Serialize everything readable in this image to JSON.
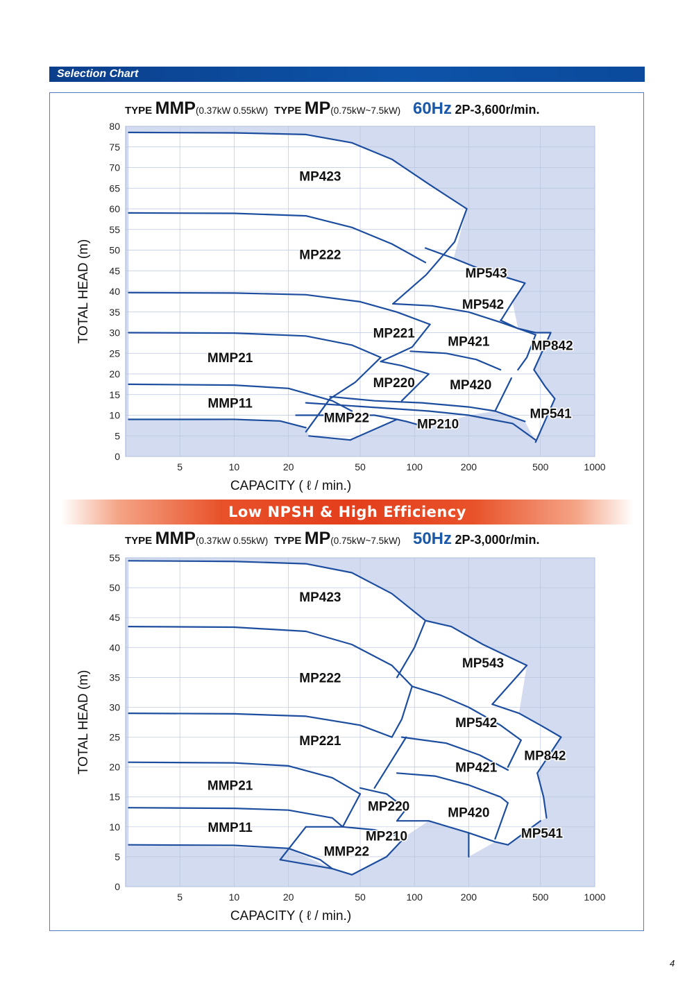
{
  "header": {
    "section_title": "Selection Chart"
  },
  "banner": {
    "text": "Low NPSH & High Efficiency"
  },
  "page_number": "4",
  "colors": {
    "plot_bg": "#d2dbef",
    "curve": "#1c4d9e",
    "header_bar": "#0d4fa3",
    "banner": "#e33e1c",
    "hz_text": "#1b58a8"
  },
  "chart_data": [
    {
      "type": "area",
      "heading": {
        "type_word_1": "TYPE",
        "model_1": "MMP",
        "range_1": "(0.37kW  0.55kW)",
        "type_word_2": "TYPE",
        "model_2": "MP",
        "range_2": "(0.75kW~7.5kW)",
        "frequency": "60Hz",
        "speed": "2P-3,600r/min."
      },
      "xlabel": "CAPACITY ( ℓ / min.)",
      "ylabel": "TOTAL HEAD (m)",
      "x_scale": "log",
      "xlim": [
        2.5,
        1000
      ],
      "ylim": [
        0,
        80
      ],
      "x_ticks": [
        5,
        10,
        20,
        50,
        100,
        200,
        500,
        1000
      ],
      "y_ticks": [
        0,
        5,
        10,
        15,
        20,
        25,
        30,
        35,
        40,
        45,
        50,
        55,
        60,
        65,
        70,
        75,
        80
      ],
      "grid": true,
      "curves": [
        [
          [
            2.6,
            78.5
          ],
          [
            10,
            78.4
          ],
          [
            25,
            78
          ],
          [
            45,
            76
          ],
          [
            75,
            72
          ],
          [
            120,
            66
          ],
          [
            195,
            60
          ]
        ],
        [
          [
            2.6,
            59
          ],
          [
            10,
            58.9
          ],
          [
            25,
            58.3
          ],
          [
            45,
            55.5
          ],
          [
            75,
            51.5
          ],
          [
            115,
            47
          ]
        ],
        [
          [
            115,
            50.5
          ],
          [
            165,
            48
          ],
          [
            245,
            45
          ],
          [
            410,
            42
          ]
        ],
        [
          [
            195,
            60
          ],
          [
            167,
            52
          ],
          [
            116,
            44
          ],
          [
            76,
            37
          ]
        ],
        [
          [
            410,
            42
          ],
          [
            350,
            37.5
          ],
          [
            302,
            33
          ]
        ],
        [
          [
            2.6,
            39.7
          ],
          [
            10,
            39.6
          ],
          [
            25,
            39.2
          ],
          [
            50,
            37.5
          ],
          [
            80,
            35
          ],
          [
            122,
            32
          ]
        ],
        [
          [
            76,
            37
          ],
          [
            125,
            36.5
          ],
          [
            200,
            35
          ],
          [
            300,
            32.5
          ],
          [
            470,
            29.5
          ]
        ],
        [
          [
            470,
            29.5
          ],
          [
            420,
            24
          ],
          [
            375,
            21
          ]
        ],
        [
          [
            2.6,
            30
          ],
          [
            10,
            29.9
          ],
          [
            25,
            29.2
          ],
          [
            45,
            27
          ],
          [
            65,
            24
          ]
        ],
        [
          [
            122,
            32
          ],
          [
            97,
            26.5
          ],
          [
            65,
            23
          ]
        ],
        [
          [
            95,
            25.5
          ],
          [
            150,
            25
          ],
          [
            220,
            23.5
          ],
          [
            300,
            21
          ]
        ],
        [
          [
            345,
            19
          ],
          [
            280,
            11
          ]
        ],
        [
          [
            2.6,
            17.5
          ],
          [
            10,
            17.3
          ],
          [
            20,
            16.5
          ],
          [
            35,
            13.5
          ],
          [
            45,
            11
          ]
        ],
        [
          [
            65,
            24
          ],
          [
            47,
            18
          ],
          [
            34,
            14
          ]
        ],
        [
          [
            65,
            23
          ],
          [
            85,
            22
          ],
          [
            120,
            20
          ]
        ],
        [
          [
            120,
            20
          ],
          [
            85,
            13.5
          ]
        ],
        [
          [
            34,
            14.5
          ],
          [
            60,
            13.5
          ],
          [
            110,
            13
          ],
          [
            200,
            12
          ],
          [
            280,
            11
          ]
        ],
        [
          [
            280,
            11
          ],
          [
            410,
            8.5
          ]
        ],
        [
          [
            22,
            10
          ],
          [
            60,
            10
          ],
          [
            80,
            9
          ],
          [
            90,
            8.5
          ]
        ],
        [
          [
            90,
            8.5
          ],
          [
            120,
            7
          ]
        ],
        [
          [
            25,
            13
          ],
          [
            120,
            11
          ],
          [
            200,
            10
          ],
          [
            350,
            8
          ],
          [
            470,
            4
          ]
        ],
        [
          [
            2.6,
            9
          ],
          [
            10,
            9
          ],
          [
            18,
            8.6
          ],
          [
            25,
            7
          ]
        ],
        [
          [
            34,
            14
          ],
          [
            25,
            6
          ]
        ],
        [
          [
            26,
            5
          ],
          [
            44,
            4
          ]
        ],
        [
          [
            44,
            4
          ],
          [
            80,
            9
          ]
        ],
        [
          [
            300,
            33
          ],
          [
            375,
            31
          ],
          [
            470,
            30
          ],
          [
            570,
            30
          ]
        ],
        [
          [
            570,
            30
          ],
          [
            460,
            21
          ]
        ],
        [
          [
            460,
            21
          ],
          [
            530,
            17
          ],
          [
            600,
            14
          ]
        ],
        [
          [
            470,
            3.5
          ],
          [
            600,
            14
          ]
        ]
      ],
      "labels": [
        {
          "text": "MP423",
          "x": 30,
          "y": 68
        },
        {
          "text": "MP222",
          "x": 30,
          "y": 49
        },
        {
          "text": "MP543",
          "x": 250,
          "y": 44.5
        },
        {
          "text": "MP542",
          "x": 240,
          "y": 37
        },
        {
          "text": "MP221",
          "x": 77,
          "y": 30
        },
        {
          "text": "MP421",
          "x": 200,
          "y": 28
        },
        {
          "text": "MP842",
          "x": 580,
          "y": 27
        },
        {
          "text": "MMP21",
          "x": 9.5,
          "y": 24
        },
        {
          "text": "MP220",
          "x": 77,
          "y": 18
        },
        {
          "text": "MP420",
          "x": 205,
          "y": 17.5
        },
        {
          "text": "MMP11",
          "x": 9.5,
          "y": 13
        },
        {
          "text": "MP541",
          "x": 570,
          "y": 10.5
        },
        {
          "text": "MMP22",
          "x": 42,
          "y": 9.5
        },
        {
          "text": "MP210",
          "x": 135,
          "y": 8
        }
      ]
    },
    {
      "type": "area",
      "heading": {
        "type_word_1": "TYPE",
        "model_1": "MMP",
        "range_1": "(0.37kW  0.55kW)",
        "type_word_2": "TYPE",
        "model_2": "MP",
        "range_2": "(0.75kW~7.5kW)",
        "frequency": "50Hz",
        "speed": "2P-3,000r/min."
      },
      "xlabel": "CAPACITY ( ℓ / min.)",
      "ylabel": "TOTAL HEAD (m)",
      "x_scale": "log",
      "xlim": [
        2.5,
        1000
      ],
      "ylim": [
        0,
        55
      ],
      "x_ticks": [
        5,
        10,
        20,
        50,
        100,
        200,
        500,
        1000
      ],
      "y_ticks": [
        0,
        5,
        10,
        15,
        20,
        25,
        30,
        35,
        40,
        45,
        50,
        55
      ],
      "grid": true,
      "curves": [
        [
          [
            2.6,
            54.5
          ],
          [
            10,
            54.4
          ],
          [
            25,
            54
          ],
          [
            45,
            52.5
          ],
          [
            75,
            49
          ],
          [
            115,
            44.5
          ]
        ],
        [
          [
            115,
            44.5
          ],
          [
            160,
            43.5
          ],
          [
            240,
            40.5
          ],
          [
            420,
            37
          ]
        ],
        [
          [
            420,
            37
          ],
          [
            270,
            30.5
          ]
        ],
        [
          [
            2.6,
            43.5
          ],
          [
            10,
            43.4
          ],
          [
            25,
            42.7
          ],
          [
            45,
            40.5
          ],
          [
            75,
            37
          ],
          [
            97,
            33.5
          ]
        ],
        [
          [
            115,
            44.5
          ],
          [
            100,
            40
          ],
          [
            80,
            35
          ]
        ],
        [
          [
            97,
            33.5
          ],
          [
            140,
            32
          ],
          [
            200,
            30
          ],
          [
            300,
            27
          ],
          [
            390,
            24.5
          ]
        ],
        [
          [
            390,
            24.5
          ],
          [
            330,
            20
          ]
        ],
        [
          [
            2.6,
            29
          ],
          [
            10,
            28.9
          ],
          [
            25,
            28.5
          ],
          [
            50,
            27
          ],
          [
            75,
            25
          ]
        ],
        [
          [
            97,
            33.5
          ],
          [
            85,
            28
          ],
          [
            75,
            25
          ]
        ],
        [
          [
            85,
            25
          ],
          [
            150,
            24
          ],
          [
            230,
            22
          ],
          [
            330,
            19.5
          ]
        ],
        [
          [
            270,
            30.5
          ],
          [
            380,
            29
          ],
          [
            500,
            27
          ],
          [
            650,
            25
          ]
        ],
        [
          [
            650,
            25
          ],
          [
            480,
            19
          ]
        ],
        [
          [
            480,
            19
          ],
          [
            520,
            15
          ],
          [
            540,
            11.5
          ]
        ],
        [
          [
            2.6,
            20.8
          ],
          [
            10,
            20.7
          ],
          [
            20,
            20.2
          ],
          [
            35,
            18.2
          ],
          [
            50,
            15.5
          ]
        ],
        [
          [
            90,
            25
          ],
          [
            60,
            16.5
          ]
        ],
        [
          [
            80,
            19
          ],
          [
            130,
            18.5
          ],
          [
            200,
            17
          ],
          [
            300,
            15
          ],
          [
            330,
            14
          ]
        ],
        [
          [
            330,
            14
          ],
          [
            280,
            8
          ]
        ],
        [
          [
            2.6,
            13.2
          ],
          [
            10,
            13.1
          ],
          [
            20,
            12.8
          ],
          [
            35,
            11.5
          ],
          [
            40,
            10
          ]
        ],
        [
          [
            50,
            16.5
          ],
          [
            70,
            15.5
          ],
          [
            90,
            13
          ],
          [
            80,
            11
          ]
        ],
        [
          [
            40,
            10
          ],
          [
            60,
            9.5
          ],
          [
            80,
            8.5
          ]
        ],
        [
          [
            80,
            11
          ],
          [
            120,
            11
          ],
          [
            200,
            9
          ],
          [
            280,
            7.5
          ],
          [
            330,
            7
          ]
        ],
        [
          [
            50,
            15.5
          ],
          [
            40,
            10
          ],
          [
            25,
            10
          ]
        ],
        [
          [
            2.6,
            7
          ],
          [
            10,
            6.9
          ],
          [
            20,
            6.4
          ],
          [
            30,
            4.5
          ],
          [
            35,
            3
          ]
        ],
        [
          [
            25,
            10
          ],
          [
            18,
            4.5
          ]
        ],
        [
          [
            18,
            4.5
          ],
          [
            35,
            3
          ],
          [
            45,
            2
          ]
        ],
        [
          [
            45,
            2
          ],
          [
            70,
            5
          ]
        ],
        [
          [
            70,
            5
          ],
          [
            90,
            8.5
          ]
        ],
        [
          [
            200,
            9
          ],
          [
            200,
            5
          ]
        ],
        [
          [
            330,
            7
          ],
          [
            500,
            11
          ]
        ]
      ],
      "labels": [
        {
          "text": "MP423",
          "x": 30,
          "y": 48.5
        },
        {
          "text": "MP222",
          "x": 30,
          "y": 35
        },
        {
          "text": "MP543",
          "x": 240,
          "y": 37.5
        },
        {
          "text": "MP542",
          "x": 220,
          "y": 27.5
        },
        {
          "text": "MP221",
          "x": 30,
          "y": 24.5
        },
        {
          "text": "MP421",
          "x": 220,
          "y": 20
        },
        {
          "text": "MP842",
          "x": 530,
          "y": 22
        },
        {
          "text": "MMP21",
          "x": 9.5,
          "y": 17
        },
        {
          "text": "MP220",
          "x": 72,
          "y": 13.5
        },
        {
          "text": "MP420",
          "x": 200,
          "y": 12.5
        },
        {
          "text": "MMP11",
          "x": 9.5,
          "y": 10
        },
        {
          "text": "MP541",
          "x": 510,
          "y": 9
        },
        {
          "text": "MP210",
          "x": 70,
          "y": 8.5
        },
        {
          "text": "MMP22",
          "x": 42,
          "y": 6
        }
      ]
    }
  ]
}
